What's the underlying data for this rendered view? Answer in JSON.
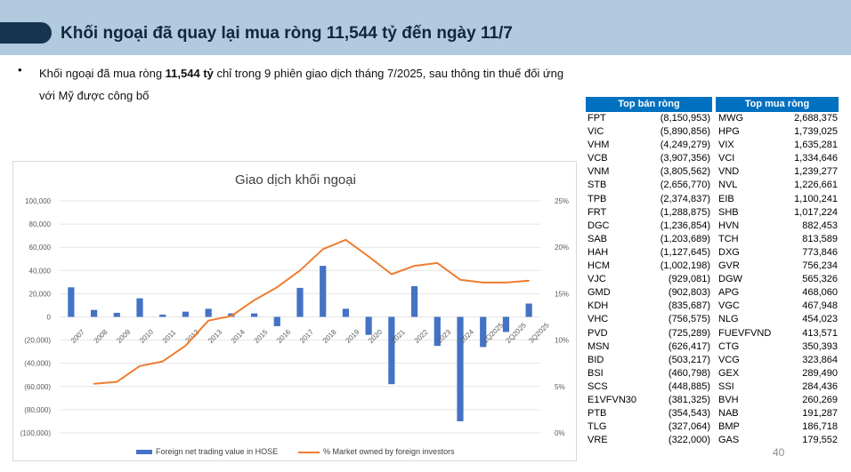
{
  "slide": {
    "title": "Khối ngoại đã quay lại mua ròng 11,544 tỷ đến ngày 11/7",
    "bullet_marker": "•",
    "bullet_pre": "Khối ngoại đã mua ròng ",
    "bullet_bold": "11,544 tỷ",
    "bullet_post": " chỉ trong 9 phiên giao dịch tháng 7/2025, sau thông tin thuế đối ứng với Mỹ được công bố",
    "page_number": "40"
  },
  "colors": {
    "header_band": "#b2cae0",
    "header_pill": "#16344f",
    "table_header": "#0070c0",
    "bar": "#4472c4",
    "line": "#ed7d31"
  },
  "chart_data": {
    "type": "bar",
    "title": "Giao dịch khối ngoại",
    "categories": [
      "2007",
      "2008",
      "2009",
      "2010",
      "2011",
      "2012",
      "2013",
      "2014",
      "2015",
      "2016",
      "2017",
      "2018",
      "2019",
      "2020",
      "2021",
      "2022",
      "2023",
      "2024",
      "1Q2025",
      "2Q2025",
      "3Q2025"
    ],
    "series": [
      {
        "name": "Foreign net trading value in HOSE",
        "type": "bar",
        "axis": "left",
        "values": [
          25500,
          6000,
          3500,
          16000,
          2000,
          4500,
          7000,
          3000,
          3000,
          -8000,
          25000,
          44000,
          7000,
          -15500,
          -58000,
          26500,
          -25000,
          -90000,
          -26000,
          -13000,
          11500
        ]
      },
      {
        "name": "% Market owned by foreign investors",
        "type": "line",
        "axis": "right",
        "values": [
          null,
          5.3,
          5.5,
          7.2,
          7.7,
          9.4,
          12.1,
          12.6,
          14.3,
          15.7,
          17.5,
          19.8,
          20.8,
          19.0,
          17.1,
          18.0,
          18.3,
          16.5,
          16.2,
          16.2,
          16.4
        ]
      }
    ],
    "ylim_left": [
      -100000,
      100000
    ],
    "yticks_left": [
      "100,000",
      "80,000",
      "60,000",
      "40,000",
      "20,000",
      "0",
      "(20,000)",
      "(40,000)",
      "(60,000)",
      "(80,000)",
      "(100,000)"
    ],
    "ylim_right": [
      0,
      25
    ],
    "yticks_right": [
      "25%",
      "20%",
      "15%",
      "10%",
      "5%",
      "0%"
    ],
    "grid": true,
    "legend_position": "bottom"
  },
  "table": {
    "sell_header": "Top bán ròng",
    "buy_header": "Top mua ròng",
    "rows": [
      {
        "sell_ticker": "FPT",
        "sell_value": "(8,150,953)",
        "buy_ticker": "MWG",
        "buy_value": "2,688,375"
      },
      {
        "sell_ticker": "VIC",
        "sell_value": "(5,890,856)",
        "buy_ticker": "HPG",
        "buy_value": "1,739,025"
      },
      {
        "sell_ticker": "VHM",
        "sell_value": "(4,249,279)",
        "buy_ticker": "VIX",
        "buy_value": "1,635,281"
      },
      {
        "sell_ticker": "VCB",
        "sell_value": "(3,907,356)",
        "buy_ticker": "VCI",
        "buy_value": "1,334,646"
      },
      {
        "sell_ticker": "VNM",
        "sell_value": "(3,805,562)",
        "buy_ticker": "VND",
        "buy_value": "1,239,277"
      },
      {
        "sell_ticker": "STB",
        "sell_value": "(2,656,770)",
        "buy_ticker": "NVL",
        "buy_value": "1,226,661"
      },
      {
        "sell_ticker": "TPB",
        "sell_value": "(2,374,837)",
        "buy_ticker": "EIB",
        "buy_value": "1,100,241"
      },
      {
        "sell_ticker": "FRT",
        "sell_value": "(1,288,875)",
        "buy_ticker": "SHB",
        "buy_value": "1,017,224"
      },
      {
        "sell_ticker": "DGC",
        "sell_value": "(1,236,854)",
        "buy_ticker": "HVN",
        "buy_value": "882,453"
      },
      {
        "sell_ticker": "SAB",
        "sell_value": "(1,203,689)",
        "buy_ticker": "TCH",
        "buy_value": "813,589"
      },
      {
        "sell_ticker": "HAH",
        "sell_value": "(1,127,645)",
        "buy_ticker": "DXG",
        "buy_value": "773,846"
      },
      {
        "sell_ticker": "HCM",
        "sell_value": "(1,002,198)",
        "buy_ticker": "GVR",
        "buy_value": "756,234"
      },
      {
        "sell_ticker": "VJC",
        "sell_value": "(929,081)",
        "buy_ticker": "DGW",
        "buy_value": "565,326"
      },
      {
        "sell_ticker": "GMD",
        "sell_value": "(902,803)",
        "buy_ticker": "APG",
        "buy_value": "468,060"
      },
      {
        "sell_ticker": "KDH",
        "sell_value": "(835,687)",
        "buy_ticker": "VGC",
        "buy_value": "467,948"
      },
      {
        "sell_ticker": "VHC",
        "sell_value": "(756,575)",
        "buy_ticker": "NLG",
        "buy_value": "454,023"
      },
      {
        "sell_ticker": "PVD",
        "sell_value": "(725,289)",
        "buy_ticker": "FUEVFVND",
        "buy_value": "413,571"
      },
      {
        "sell_ticker": "MSN",
        "sell_value": "(626,417)",
        "buy_ticker": "CTG",
        "buy_value": "350,393"
      },
      {
        "sell_ticker": "BID",
        "sell_value": "(503,217)",
        "buy_ticker": "VCG",
        "buy_value": "323,864"
      },
      {
        "sell_ticker": "BSI",
        "sell_value": "(460,798)",
        "buy_ticker": "GEX",
        "buy_value": "289,490"
      },
      {
        "sell_ticker": "SCS",
        "sell_value": "(448,885)",
        "buy_ticker": "SSI",
        "buy_value": "284,436"
      },
      {
        "sell_ticker": "E1VFVN30",
        "sell_value": "(381,325)",
        "buy_ticker": "BVH",
        "buy_value": "260,269"
      },
      {
        "sell_ticker": "PTB",
        "sell_value": "(354,543)",
        "buy_ticker": "NAB",
        "buy_value": "191,287"
      },
      {
        "sell_ticker": "TLG",
        "sell_value": "(327,064)",
        "buy_ticker": "BMP",
        "buy_value": "186,718"
      },
      {
        "sell_ticker": "VRE",
        "sell_value": "(322,000)",
        "buy_ticker": "GAS",
        "buy_value": "179,552"
      }
    ]
  }
}
